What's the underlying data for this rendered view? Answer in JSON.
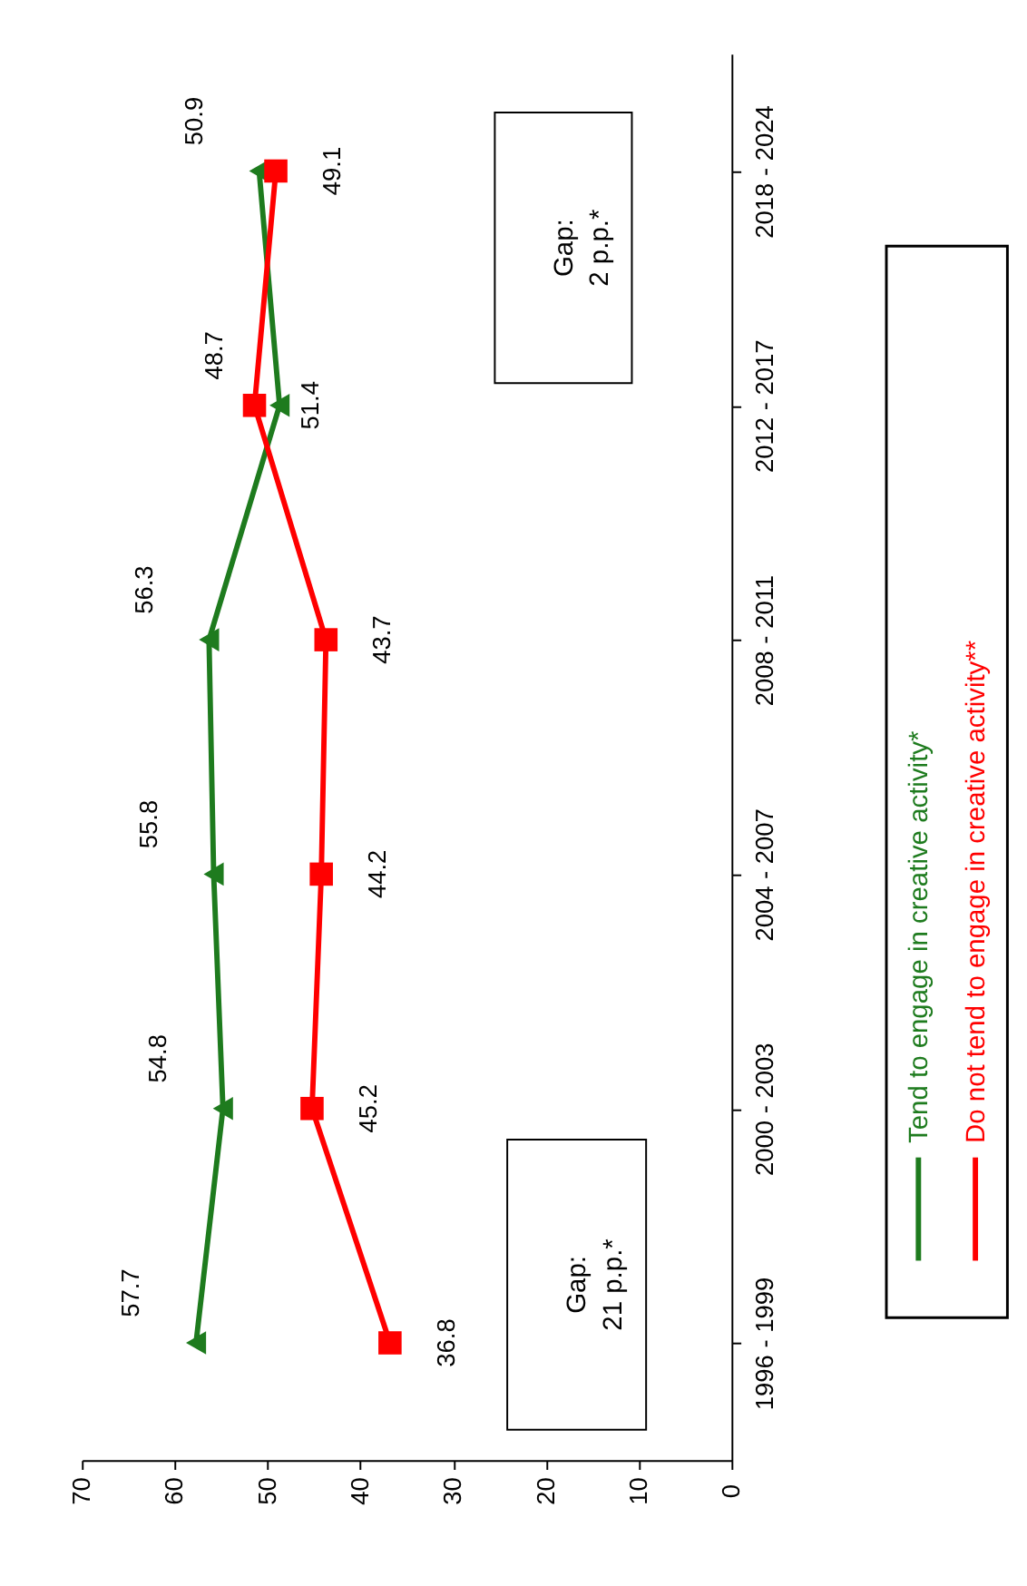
{
  "chart_data": {
    "type": "line",
    "orientation": "horizontal",
    "categories": [
      "2018 - 2024",
      "2012 - 2017",
      "2008 - 2011",
      "2004 - 2007",
      "2000 - 2003",
      "1996 - 1999"
    ],
    "series": [
      {
        "name": "Tend to engage in creative activity*",
        "color": "#1e7b1e",
        "marker": "triangle",
        "values": [
          50.9,
          48.7,
          56.3,
          55.8,
          54.8,
          57.7
        ]
      },
      {
        "name": "Do not tend to engage in creative activity**",
        "color": "#ff0000",
        "marker": "square",
        "values": [
          49.1,
          51.4,
          43.7,
          44.2,
          45.2,
          36.8
        ]
      }
    ],
    "xlim": [
      70,
      0
    ],
    "xticks": [
      70,
      60,
      50,
      40,
      30,
      20,
      10,
      0
    ],
    "data_labels": true,
    "grid": false,
    "legend": "bottom",
    "line_style": "solid",
    "annotations": [
      "Gap:\n2 p.p.*",
      "Gap:\n21 p.p.*"
    ]
  }
}
